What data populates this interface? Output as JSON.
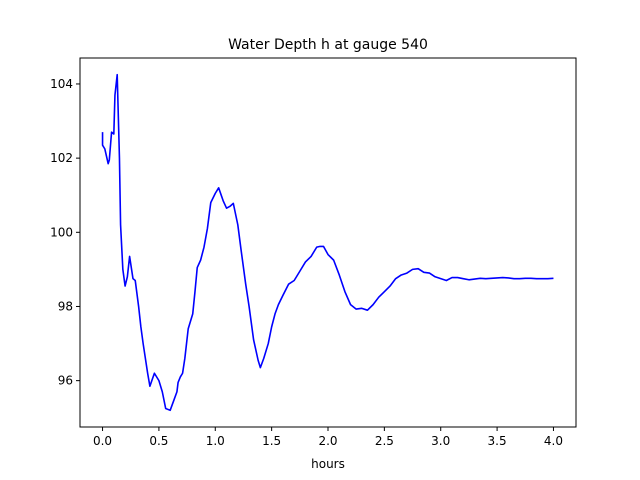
{
  "chart_data": {
    "type": "line",
    "title": "Water Depth h at gauge 540",
    "xlabel": "hours",
    "ylabel": "",
    "xlim": [
      -0.2,
      4.2
    ],
    "ylim": [
      94.75,
      104.7
    ],
    "xticks": [
      0.0,
      0.5,
      1.0,
      1.5,
      2.0,
      2.5,
      3.0,
      3.5,
      4.0
    ],
    "xtick_labels": [
      "0.0",
      "0.5",
      "1.0",
      "1.5",
      "2.0",
      "2.5",
      "3.0",
      "3.5",
      "4.0"
    ],
    "yticks": [
      96,
      98,
      100,
      102,
      104
    ],
    "ytick_labels": [
      "96",
      "98",
      "100",
      "102",
      "104"
    ],
    "grid": false,
    "series": [
      {
        "color": "#0000ff",
        "x": [
          0.0,
          0.0,
          0.02,
          0.05,
          0.06,
          0.08,
          0.1,
          0.11,
          0.13,
          0.15,
          0.16,
          0.18,
          0.2,
          0.22,
          0.24,
          0.27,
          0.29,
          0.32,
          0.34,
          0.36,
          0.4,
          0.42,
          0.46,
          0.5,
          0.53,
          0.56,
          0.6,
          0.63,
          0.66,
          0.67,
          0.69,
          0.71,
          0.73,
          0.76,
          0.8,
          0.82,
          0.84,
          0.87,
          0.9,
          0.93,
          0.96,
          1.0,
          1.03,
          1.07,
          1.1,
          1.13,
          1.16,
          1.2,
          1.23,
          1.27,
          1.3,
          1.34,
          1.38,
          1.4,
          1.43,
          1.47,
          1.5,
          1.53,
          1.56,
          1.6,
          1.65,
          1.7,
          1.75,
          1.8,
          1.85,
          1.9,
          1.93,
          1.96,
          2.0,
          2.05,
          2.1,
          2.15,
          2.2,
          2.25,
          2.3,
          2.35,
          2.4,
          2.45,
          2.5,
          2.55,
          2.6,
          2.65,
          2.7,
          2.75,
          2.8,
          2.85,
          2.9,
          2.95,
          3.0,
          3.05,
          3.1,
          3.15,
          3.2,
          3.25,
          3.3,
          3.35,
          3.4,
          3.45,
          3.5,
          3.55,
          3.6,
          3.65,
          3.7,
          3.75,
          3.8,
          3.85,
          3.9,
          3.95,
          4.0
        ],
        "y": [
          102.7,
          102.35,
          102.25,
          101.85,
          101.95,
          102.7,
          102.65,
          103.7,
          104.25,
          102.0,
          100.2,
          99.0,
          98.55,
          98.8,
          99.35,
          98.75,
          98.7,
          98.0,
          97.45,
          97.0,
          96.2,
          95.85,
          96.2,
          96.0,
          95.7,
          95.25,
          95.2,
          95.45,
          95.7,
          95.95,
          96.1,
          96.2,
          96.6,
          97.4,
          97.8,
          98.4,
          99.05,
          99.25,
          99.6,
          100.1,
          100.8,
          101.05,
          101.2,
          100.85,
          100.65,
          100.7,
          100.78,
          100.2,
          99.5,
          98.6,
          98.0,
          97.1,
          96.55,
          96.35,
          96.6,
          97.0,
          97.45,
          97.8,
          98.05,
          98.3,
          98.6,
          98.7,
          98.95,
          99.2,
          99.35,
          99.6,
          99.62,
          99.62,
          99.4,
          99.25,
          98.85,
          98.4,
          98.05,
          97.93,
          97.95,
          97.9,
          98.05,
          98.25,
          98.4,
          98.55,
          98.75,
          98.85,
          98.9,
          99.0,
          99.02,
          98.92,
          98.9,
          98.8,
          98.75,
          98.7,
          98.78,
          98.78,
          98.75,
          98.72,
          98.74,
          98.76,
          98.75,
          98.76,
          98.77,
          98.78,
          98.77,
          98.75,
          98.75,
          98.76,
          98.76,
          98.75,
          98.75,
          98.75,
          98.76
        ]
      }
    ]
  }
}
